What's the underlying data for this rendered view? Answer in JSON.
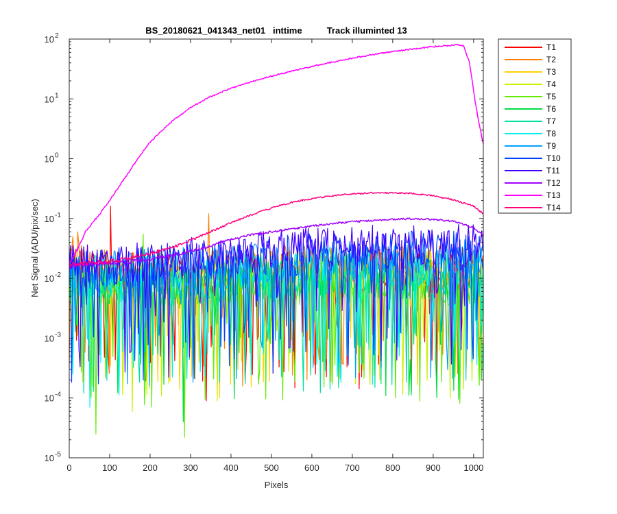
{
  "chart_data": {
    "type": "line",
    "title": "BS_20180621_041343_net01   inttime          Track illuminted 13",
    "xlabel": "Pixels",
    "ylabel": "Net Signal (ADU/pix/sec)",
    "xlim": [
      0,
      1024
    ],
    "ylim": [
      1e-05,
      100
    ],
    "yscale": "log",
    "grid": false,
    "legend_placement": "outside-right",
    "x_ticks": [
      0,
      100,
      200,
      300,
      400,
      500,
      600,
      700,
      800,
      900,
      1000
    ],
    "y_ticks": [
      {
        "base": "10",
        "exp": "-5",
        "value": 1e-05
      },
      {
        "base": "10",
        "exp": "-4",
        "value": 0.0001
      },
      {
        "base": "10",
        "exp": "-3",
        "value": 0.001
      },
      {
        "base": "10",
        "exp": "-2",
        "value": 0.01
      },
      {
        "base": "10",
        "exp": "-1",
        "value": 0.1
      },
      {
        "base": "10",
        "exp": "0",
        "value": 1
      },
      {
        "base": "10",
        "exp": "1",
        "value": 10
      },
      {
        "base": "10",
        "exp": "2",
        "value": 100
      }
    ],
    "series": [
      {
        "name": "T1",
        "color": "#ff0000",
        "kind": "noise",
        "x": [
          0,
          100,
          200,
          300,
          400,
          500,
          600,
          700,
          800,
          900,
          1024
        ],
        "values": [
          0.015,
          0.013,
          0.012,
          0.011,
          0.011,
          0.012,
          0.013,
          0.013,
          0.013,
          0.013,
          0.013
        ],
        "spikes": [
          {
            "x": 103,
            "y": 0.16
          },
          {
            "x": 847,
            "y": 0.00013
          },
          {
            "x": 340,
            "y": 9e-05
          }
        ]
      },
      {
        "name": "T2",
        "color": "#ff7f00",
        "kind": "noise",
        "x": [
          0,
          100,
          200,
          300,
          400,
          500,
          600,
          700,
          800,
          900,
          1024
        ],
        "values": [
          0.018,
          0.015,
          0.014,
          0.014,
          0.015,
          0.016,
          0.017,
          0.017,
          0.017,
          0.017,
          0.017
        ],
        "spikes": [
          {
            "x": 10,
            "y": 0.05
          },
          {
            "x": 20,
            "y": 0.06
          },
          {
            "x": 345,
            "y": 0.12
          }
        ]
      },
      {
        "name": "T3",
        "color": "#ffd000",
        "kind": "noise",
        "x": [
          0,
          100,
          200,
          300,
          400,
          500,
          600,
          700,
          800,
          900,
          1024
        ],
        "values": [
          0.012,
          0.011,
          0.011,
          0.011,
          0.012,
          0.013,
          0.014,
          0.015,
          0.015,
          0.015,
          0.014
        ],
        "spikes": [
          {
            "x": 372,
            "y": 0.0001
          }
        ]
      },
      {
        "name": "T4",
        "color": "#c8f000",
        "kind": "noise",
        "x": [
          0,
          100,
          200,
          300,
          400,
          500,
          600,
          700,
          800,
          900,
          1024
        ],
        "values": [
          0.009,
          0.008,
          0.008,
          0.009,
          0.009,
          0.01,
          0.01,
          0.01,
          0.01,
          0.01,
          0.009
        ],
        "spikes": [
          {
            "x": 155,
            "y": 6e-05
          }
        ]
      },
      {
        "name": "T5",
        "color": "#60ee00",
        "kind": "noise",
        "x": [
          0,
          100,
          200,
          300,
          400,
          500,
          600,
          700,
          800,
          900,
          1024
        ],
        "values": [
          0.008,
          0.007,
          0.007,
          0.007,
          0.008,
          0.008,
          0.008,
          0.008,
          0.008,
          0.008,
          0.007
        ],
        "spikes": [
          {
            "x": 65,
            "y": 2.5e-05
          },
          {
            "x": 285,
            "y": 2.2e-05
          },
          {
            "x": 183,
            "y": 0.055
          }
        ]
      },
      {
        "name": "T6",
        "color": "#00dd40",
        "kind": "noise",
        "x": [
          0,
          100,
          200,
          300,
          400,
          500,
          600,
          700,
          800,
          900,
          1024
        ],
        "values": [
          0.008,
          0.008,
          0.008,
          0.008,
          0.009,
          0.009,
          0.01,
          0.01,
          0.01,
          0.01,
          0.009
        ],
        "spikes": [
          {
            "x": 283,
            "y": 4e-05
          }
        ]
      },
      {
        "name": "T7",
        "color": "#00e0a0",
        "kind": "noise",
        "x": [
          0,
          100,
          200,
          300,
          400,
          500,
          600,
          700,
          800,
          900,
          1024
        ],
        "values": [
          0.009,
          0.009,
          0.009,
          0.009,
          0.01,
          0.011,
          0.011,
          0.012,
          0.012,
          0.012,
          0.011
        ],
        "spikes": [
          {
            "x": 37,
            "y": 0.00012
          },
          {
            "x": 1020,
            "y": 0.0002
          }
        ]
      },
      {
        "name": "T8",
        "color": "#00f0f0",
        "kind": "noise",
        "x": [
          0,
          100,
          200,
          300,
          400,
          500,
          600,
          700,
          800,
          900,
          1024
        ],
        "values": [
          0.011,
          0.011,
          0.011,
          0.012,
          0.013,
          0.014,
          0.015,
          0.016,
          0.016,
          0.016,
          0.015
        ],
        "spikes": [
          {
            "x": 52,
            "y": 7e-05
          }
        ]
      },
      {
        "name": "T9",
        "color": "#00a0ff",
        "kind": "noise",
        "x": [
          0,
          100,
          200,
          300,
          400,
          500,
          600,
          700,
          800,
          900,
          1024
        ],
        "values": [
          0.013,
          0.013,
          0.014,
          0.015,
          0.016,
          0.018,
          0.019,
          0.02,
          0.021,
          0.021,
          0.02
        ],
        "spikes": []
      },
      {
        "name": "T10",
        "color": "#0040ff",
        "kind": "noise",
        "x": [
          0,
          100,
          200,
          300,
          400,
          500,
          600,
          700,
          800,
          900,
          1024
        ],
        "values": [
          0.014,
          0.015,
          0.016,
          0.018,
          0.02,
          0.023,
          0.025,
          0.027,
          0.028,
          0.028,
          0.027
        ],
        "spikes": []
      },
      {
        "name": "T11",
        "color": "#4000ff",
        "kind": "noise",
        "x": [
          0,
          100,
          200,
          300,
          400,
          500,
          600,
          700,
          800,
          900,
          1024
        ],
        "values": [
          0.016,
          0.017,
          0.019,
          0.022,
          0.025,
          0.029,
          0.032,
          0.035,
          0.037,
          0.037,
          0.035
        ],
        "spikes": []
      },
      {
        "name": "T12",
        "color": "#a000ff",
        "kind": "smooth",
        "x": [
          0,
          50,
          100,
          150,
          200,
          250,
          300,
          350,
          400,
          450,
          500,
          550,
          600,
          650,
          700,
          750,
          800,
          850,
          900,
          950,
          1000,
          1024
        ],
        "values": [
          0.016,
          0.017,
          0.018,
          0.019,
          0.021,
          0.024,
          0.028,
          0.035,
          0.045,
          0.053,
          0.06,
          0.067,
          0.075,
          0.082,
          0.088,
          0.093,
          0.097,
          0.099,
          0.097,
          0.09,
          0.07,
          0.052
        ],
        "spikes": []
      },
      {
        "name": "T13",
        "color": "#ff00ff",
        "kind": "smooth",
        "x": [
          0,
          20,
          40,
          60,
          80,
          100,
          120,
          140,
          160,
          180,
          200,
          250,
          300,
          350,
          400,
          450,
          500,
          550,
          600,
          650,
          700,
          750,
          800,
          850,
          900,
          940,
          960,
          975,
          990,
          1005,
          1015,
          1024
        ],
        "values": [
          0.018,
          0.03,
          0.06,
          0.09,
          0.13,
          0.2,
          0.32,
          0.5,
          0.8,
          1.25,
          1.9,
          4.0,
          7.2,
          11,
          15,
          19.5,
          24,
          29,
          35,
          41,
          48,
          55,
          62,
          68,
          75,
          78,
          80,
          78,
          40,
          8,
          3.5,
          1.7
        ],
        "spikes": []
      },
      {
        "name": "T14",
        "color": "#ff0080",
        "kind": "smooth",
        "x": [
          0,
          50,
          100,
          150,
          200,
          250,
          300,
          350,
          400,
          450,
          500,
          550,
          600,
          650,
          700,
          750,
          800,
          850,
          900,
          950,
          1000,
          1024
        ],
        "values": [
          0.017,
          0.018,
          0.019,
          0.022,
          0.026,
          0.032,
          0.043,
          0.06,
          0.085,
          0.115,
          0.15,
          0.185,
          0.215,
          0.24,
          0.258,
          0.268,
          0.27,
          0.262,
          0.24,
          0.205,
          0.16,
          0.12
        ],
        "spikes": []
      }
    ]
  }
}
